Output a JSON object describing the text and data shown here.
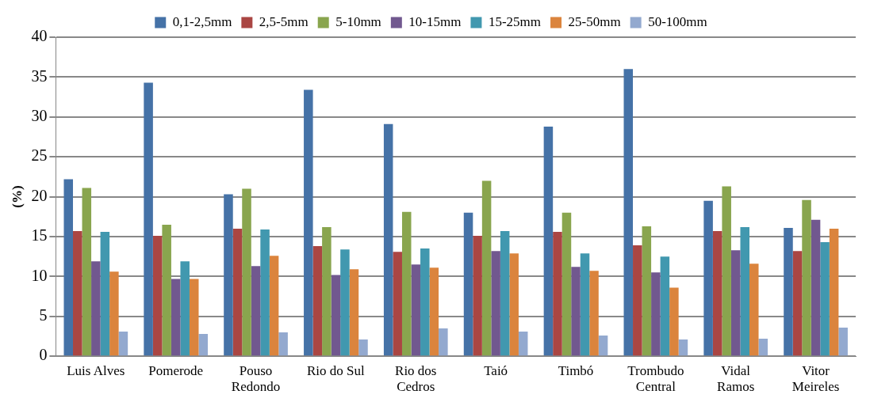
{
  "chart_data": {
    "type": "bar",
    "ylabel": "(%)",
    "categories": [
      "Luis Alves",
      "Pomerode",
      "Pouso Redondo",
      "Rio do Sul",
      "Rio dos Cedros",
      "Taió",
      "Timbó",
      "Trombudo Central",
      "Vidal Ramos",
      "Vitor Meireles"
    ],
    "series": [
      {
        "name": "0,1-2,5mm",
        "color": "#4572a7",
        "values": [
          22.2,
          34.3,
          20.3,
          33.4,
          29.1,
          18.0,
          28.8,
          36.0,
          19.5,
          16.1
        ]
      },
      {
        "name": "2,5-5mm",
        "color": "#aa4643",
        "values": [
          15.7,
          15.1,
          16.0,
          13.8,
          13.1,
          15.1,
          15.6,
          13.9,
          15.7,
          13.2
        ]
      },
      {
        "name": "5-10mm",
        "color": "#89a54e",
        "values": [
          21.1,
          16.5,
          21.0,
          16.2,
          18.1,
          22.0,
          18.0,
          16.3,
          21.3,
          19.6
        ]
      },
      {
        "name": "10-15mm",
        "color": "#71588f",
        "values": [
          11.9,
          9.7,
          11.3,
          10.2,
          11.5,
          13.2,
          11.2,
          10.5,
          13.3,
          17.1
        ]
      },
      {
        "name": "15-25mm",
        "color": "#4198af",
        "values": [
          15.6,
          11.9,
          15.9,
          13.4,
          13.5,
          15.7,
          12.9,
          12.5,
          16.2,
          14.3
        ]
      },
      {
        "name": "25-50mm",
        "color": "#db843d",
        "values": [
          10.6,
          9.7,
          12.6,
          10.9,
          11.1,
          12.9,
          10.7,
          8.6,
          11.6,
          16.0
        ]
      },
      {
        "name": "50-100mm",
        "color": "#93a9cf",
        "values": [
          3.1,
          2.8,
          3.0,
          2.1,
          3.5,
          3.1,
          2.6,
          2.1,
          2.2,
          3.6
        ]
      }
    ],
    "ylim": [
      0,
      40
    ],
    "yticks": [
      0,
      5,
      10,
      15,
      20,
      25,
      30,
      35,
      40
    ],
    "grid": "y",
    "legend": "top"
  }
}
